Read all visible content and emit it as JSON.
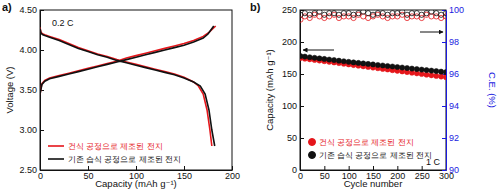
{
  "chart_data": [
    {
      "type": "line",
      "title": "a)",
      "annotation": "0.2 C",
      "x_label": "Capacity (mAh g⁻¹)",
      "y_label": "Voltage (V)",
      "xlim": [
        0,
        200
      ],
      "xticks": [
        0,
        50,
        100,
        150,
        200
      ],
      "ylim": [
        2.5,
        4.5
      ],
      "yticks": [
        {
          "value": 2.5,
          "label": "2.50"
        },
        {
          "value": 3,
          "label": "3.00"
        },
        {
          "value": 3.5,
          "label": "3.50"
        },
        {
          "value": 4,
          "label": "4.00"
        },
        {
          "value": 4.5,
          "label": "4.50"
        }
      ],
      "legend": "lower left",
      "series": [
        {
          "name": "건식 공정으로 제조된 전지",
          "color": "#e5161b",
          "x": [
            0,
            2,
            5,
            10,
            20,
            30,
            40,
            50,
            60,
            70,
            80,
            90,
            100,
            110,
            120,
            130,
            140,
            150,
            160,
            170,
            176,
            183,
            null,
            0,
            1,
            3,
            5,
            10,
            20,
            30,
            40,
            50,
            60,
            70,
            80,
            90,
            100,
            110,
            120,
            130,
            140,
            150,
            160,
            165,
            170,
            174,
            177,
            179
          ],
          "values": [
            3.45,
            3.58,
            3.62,
            3.65,
            3.68,
            3.71,
            3.74,
            3.77,
            3.8,
            3.83,
            3.86,
            3.9,
            3.93,
            3.96,
            3.99,
            4.02,
            4.05,
            4.08,
            4.12,
            4.17,
            4.22,
            4.3,
            null,
            4.28,
            4.22,
            4.2,
            4.19,
            4.17,
            4.13,
            4.08,
            4.03,
            3.99,
            3.95,
            3.92,
            3.88,
            3.85,
            3.82,
            3.79,
            3.76,
            3.73,
            3.7,
            3.66,
            3.6,
            3.55,
            3.45,
            3.25,
            3.0,
            2.8
          ]
        },
        {
          "name": "기존 습식 공정으로 제조된 전지",
          "color": "#111111",
          "x": [
            0,
            2,
            5,
            10,
            20,
            30,
            40,
            50,
            60,
            70,
            80,
            90,
            100,
            110,
            120,
            130,
            140,
            150,
            160,
            170,
            175,
            181,
            null,
            0,
            1,
            3,
            5,
            10,
            20,
            30,
            40,
            50,
            60,
            70,
            80,
            90,
            100,
            110,
            120,
            130,
            140,
            150,
            160,
            167,
            172,
            176,
            179,
            182
          ],
          "values": [
            3.45,
            3.57,
            3.61,
            3.64,
            3.67,
            3.7,
            3.73,
            3.76,
            3.79,
            3.82,
            3.85,
            3.88,
            3.91,
            3.94,
            3.97,
            4.0,
            4.03,
            4.06,
            4.1,
            4.15,
            4.2,
            4.3,
            null,
            4.27,
            4.21,
            4.19,
            4.18,
            4.16,
            4.12,
            4.07,
            4.02,
            3.98,
            3.94,
            3.91,
            3.87,
            3.84,
            3.81,
            3.78,
            3.75,
            3.72,
            3.69,
            3.65,
            3.6,
            3.55,
            3.45,
            3.25,
            3.0,
            2.8
          ]
        }
      ]
    },
    {
      "type": "scatter",
      "title": "b)",
      "annotation": "1 C",
      "x_label": "Cycle number",
      "y_label": "Capacity (mAh g⁻¹)",
      "y2_label": "C.E. (%)",
      "xlim": [
        0,
        300
      ],
      "xticks": [
        0,
        50,
        100,
        150,
        200,
        250,
        300
      ],
      "ylim": [
        0,
        250
      ],
      "yticks": [
        0,
        50,
        100,
        150,
        200,
        250
      ],
      "y2lim": [
        90,
        100
      ],
      "y2ticks": [
        90,
        92,
        94,
        96,
        98,
        100
      ],
      "legend": "lower left",
      "x": [
        1,
        10,
        20,
        30,
        40,
        50,
        60,
        70,
        80,
        90,
        100,
        110,
        120,
        130,
        140,
        150,
        160,
        170,
        180,
        190,
        200,
        210,
        220,
        230,
        240,
        250,
        260,
        270,
        280,
        290,
        300
      ],
      "series": [
        {
          "name": "건식 공정으로 제조된 전지",
          "color": "#e5161b",
          "marker": "circle",
          "values": [
            175,
            174,
            173,
            172,
            171,
            170,
            169,
            168,
            167,
            166,
            165,
            164,
            163,
            162,
            161,
            160,
            159,
            158,
            157,
            156,
            155,
            154,
            153,
            152,
            151,
            150,
            149,
            148,
            147,
            146,
            145
          ]
        },
        {
          "name": "기존 습식 공정으로 제조된 전지",
          "color": "#111111",
          "marker": "circle",
          "values": [
            178,
            177.2,
            176.2,
            175.3,
            174.4,
            173.5,
            172.6,
            171.7,
            170.8,
            169.9,
            169,
            168.1,
            167.3,
            166.5,
            165.7,
            164.9,
            164.1,
            163.3,
            162.5,
            161.7,
            160.9,
            160.1,
            159.3,
            158.5,
            157.7,
            156.9,
            156.1,
            155.3,
            154.5,
            153.7,
            152.9
          ]
        },
        {
          "color": "#e5161b",
          "marker": "open-circle",
          "axis": "y2",
          "values": [
            99.4,
            99.6,
            99.5,
            99.7,
            99.6,
            99.5,
            99.6,
            99.7,
            99.5,
            99.6,
            99.6,
            99.5,
            99.7,
            99.6,
            99.5,
            99.6,
            99.7,
            99.6,
            99.5,
            99.6,
            99.6,
            99.7,
            99.5,
            99.6,
            99.6,
            99.5,
            99.7,
            99.6,
            99.6,
            99.5,
            99.6
          ]
        },
        {
          "color": "#111111",
          "marker": "open-circle",
          "axis": "y2",
          "values": [
            99.7,
            99.8,
            99.7,
            99.8,
            99.9,
            99.7,
            99.8,
            99.8,
            99.7,
            99.8,
            99.8,
            99.7,
            99.8,
            99.9,
            99.8,
            99.7,
            99.8,
            99.8,
            99.7,
            99.8,
            99.8,
            99.9,
            99.7,
            99.8,
            99.8,
            99.7,
            99.8,
            99.9,
            99.8,
            99.7,
            99.8
          ]
        }
      ]
    }
  ]
}
